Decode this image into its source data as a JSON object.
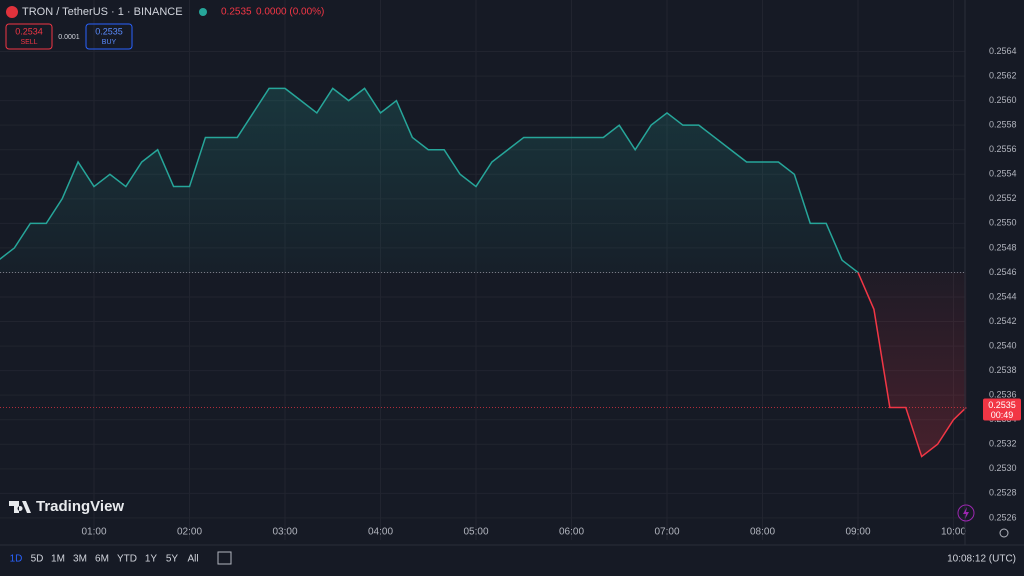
{
  "header": {
    "symbol": "TRON / TetherUS · 1 · BINANCE",
    "price": "0.2535",
    "change": "0.0000 (0.00%)"
  },
  "trade": {
    "sell_price": "0.2534",
    "sell": "SELL",
    "spread": "0.0001",
    "buy_price": "0.2535",
    "buy": "BUY"
  },
  "logo": "TradingView",
  "timeframes": [
    "1D",
    "5D",
    "1M",
    "3M",
    "6M",
    "YTD",
    "1Y",
    "5Y",
    "All"
  ],
  "clock": "10:08:12 (UTC)",
  "chart_data": {
    "type": "baseline",
    "x": [
      "00:00",
      "00:10",
      "00:20",
      "00:30",
      "00:40",
      "00:50",
      "01:00",
      "01:10",
      "01:20",
      "01:30",
      "01:40",
      "01:50",
      "02:00",
      "02:10",
      "02:20",
      "02:30",
      "02:40",
      "02:50",
      "03:00",
      "03:10",
      "03:20",
      "03:30",
      "03:40",
      "03:50",
      "04:00",
      "04:10",
      "04:20",
      "04:30",
      "04:40",
      "04:50",
      "05:00",
      "05:10",
      "05:20",
      "05:30",
      "05:40",
      "05:50",
      "06:00",
      "06:10",
      "06:20",
      "06:30",
      "06:40",
      "06:50",
      "07:00",
      "07:10",
      "07:20",
      "07:30",
      "07:40",
      "07:50",
      "08:00",
      "08:10",
      "08:20",
      "08:30",
      "08:40",
      "08:50",
      "09:00",
      "09:10",
      "09:20",
      "09:30",
      "09:40",
      "09:50",
      "10:00",
      "10:08"
    ],
    "values": [
      0.2547,
      0.2548,
      0.255,
      0.255,
      0.2552,
      0.2555,
      0.2553,
      0.2554,
      0.2553,
      0.2555,
      0.2556,
      0.2553,
      0.2553,
      0.2557,
      0.2557,
      0.2557,
      0.2559,
      0.2561,
      0.2561,
      0.256,
      0.2559,
      0.2561,
      0.256,
      0.2561,
      0.2559,
      0.256,
      0.2557,
      0.2556,
      0.2556,
      0.2554,
      0.2553,
      0.2555,
      0.2556,
      0.2557,
      0.2557,
      0.2557,
      0.2557,
      0.2557,
      0.2557,
      0.2558,
      0.2556,
      0.2558,
      0.2559,
      0.2558,
      0.2558,
      0.2557,
      0.2556,
      0.2555,
      0.2555,
      0.2555,
      0.2554,
      0.255,
      0.255,
      0.2547,
      0.2546,
      0.2543,
      0.2535,
      0.2535,
      0.2531,
      0.2532,
      0.2534,
      0.2535
    ],
    "baseline": 0.2546,
    "up_color": "#26a69a",
    "down_color": "#f23645",
    "ylim": [
      0.25242,
      0.25682
    ],
    "yticks": [
      0.2526,
      0.2528,
      {
        "value": 0.253,
        "label": "0.2530"
      },
      0.2532,
      0.2534,
      0.2536,
      0.2538,
      {
        "value": 0.254,
        "label": "0.2540"
      },
      0.2542,
      0.2544,
      0.2546,
      0.2548,
      {
        "value": 0.255,
        "label": "0.2550"
      },
      0.2552,
      0.2554,
      0.2556,
      0.2558,
      {
        "value": 0.256,
        "label": "0.2560"
      },
      0.2562,
      0.2564
    ],
    "xticks": [
      "01:00",
      "02:00",
      "03:00",
      "04:00",
      "05:00",
      "06:00",
      "07:00",
      "08:00",
      "09:00",
      "10:00"
    ],
    "last_label": "0.2535",
    "countdown": "00:49",
    "grid": true
  }
}
